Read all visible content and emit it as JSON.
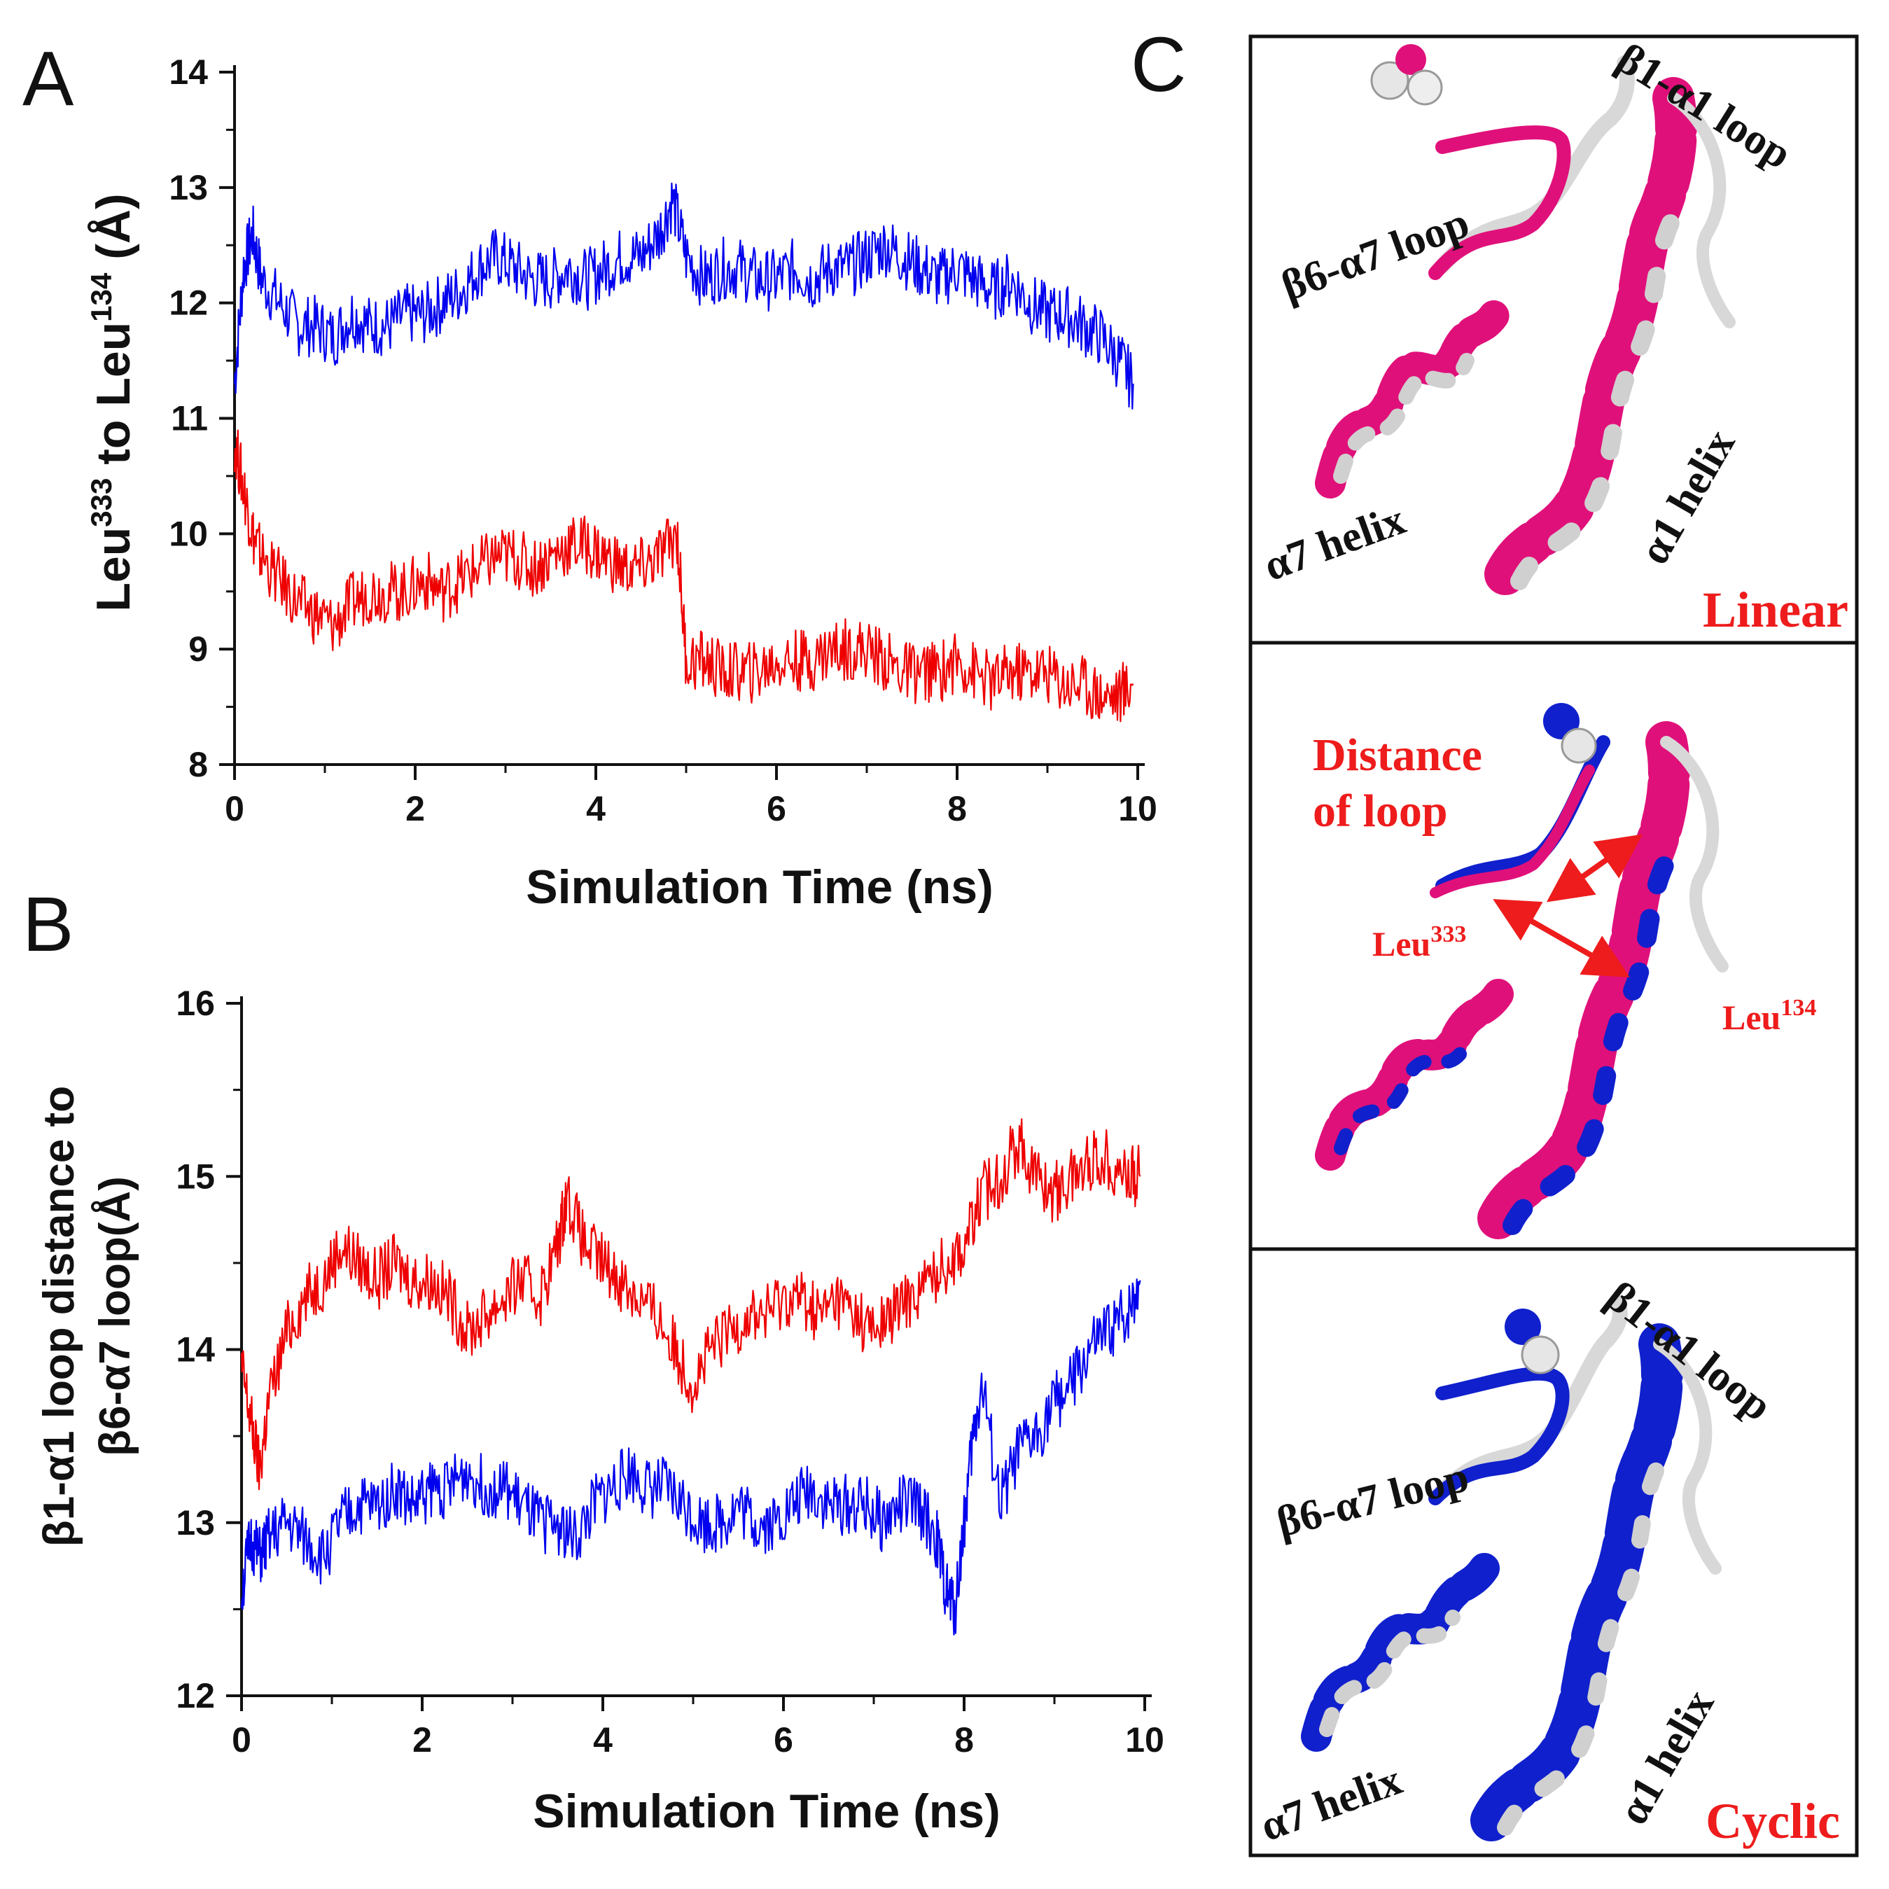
{
  "panel_labels": {
    "a": "A",
    "b": "B",
    "c": "C"
  },
  "colors": {
    "series1": "#0000ee",
    "series2": "#ee0000",
    "magenta": "#e0107a",
    "blue_ribbon": "#1020cc",
    "white_ribbon": "#d8d8d8",
    "label_red": "#ee1c1c",
    "text": "#111111"
  },
  "chart_data": [
    {
      "id": "A",
      "type": "line",
      "title": "",
      "xlabel": "Simulation Time (ns)",
      "ylabel_parts": {
        "p1": "Leu",
        "s1": "333",
        "p2": " to Leu",
        "s2": "134",
        "p3": " (Å)"
      },
      "xlim": [
        0,
        10
      ],
      "ylim": [
        8,
        14
      ],
      "xticks": [
        "0",
        "2",
        "4",
        "6",
        "8",
        "10"
      ],
      "yticks": [
        "8",
        "9",
        "10",
        "11",
        "12",
        "13",
        "14"
      ],
      "series": [
        {
          "name": "blue",
          "color": "#0000ee",
          "x": [
            0,
            0.1,
            0.2,
            0.3,
            0.5,
            0.7,
            0.9,
            1.1,
            1.3,
            1.5,
            1.7,
            1.9,
            2.1,
            2.3,
            2.5,
            2.7,
            2.9,
            3.1,
            3.3,
            3.5,
            3.7,
            3.9,
            4.1,
            4.3,
            4.5,
            4.7,
            4.85,
            5.0,
            5.2,
            5.4,
            5.6,
            5.8,
            6.0,
            6.2,
            6.4,
            6.6,
            6.8,
            7.0,
            7.2,
            7.4,
            7.6,
            7.8,
            8.0,
            8.2,
            8.4,
            8.6,
            8.8,
            9.0,
            9.2,
            9.4,
            9.6,
            9.8,
            9.95
          ],
          "y": [
            11.3,
            12.3,
            12.6,
            12.2,
            12.0,
            11.8,
            11.8,
            11.7,
            11.9,
            11.8,
            11.8,
            11.9,
            11.9,
            12.0,
            12.1,
            12.3,
            12.4,
            12.3,
            12.2,
            12.2,
            12.3,
            12.2,
            12.3,
            12.4,
            12.4,
            12.6,
            12.9,
            12.4,
            12.2,
            12.3,
            12.3,
            12.2,
            12.2,
            12.3,
            12.2,
            12.3,
            12.3,
            12.4,
            12.5,
            12.4,
            12.3,
            12.2,
            12.3,
            12.2,
            12.1,
            12.2,
            12.0,
            11.9,
            11.9,
            11.8,
            11.7,
            11.5,
            11.3
          ]
        },
        {
          "name": "red",
          "color": "#ee0000",
          "x": [
            0,
            0.1,
            0.2,
            0.3,
            0.5,
            0.7,
            0.9,
            1.1,
            1.3,
            1.5,
            1.7,
            1.9,
            2.1,
            2.3,
            2.5,
            2.7,
            2.9,
            3.1,
            3.3,
            3.5,
            3.7,
            3.9,
            4.1,
            4.3,
            4.5,
            4.7,
            4.9,
            5.0,
            5.2,
            5.4,
            5.6,
            5.8,
            6.0,
            6.2,
            6.4,
            6.6,
            6.8,
            7.0,
            7.2,
            7.4,
            7.6,
            7.8,
            8.0,
            8.2,
            8.4,
            8.6,
            8.8,
            9.0,
            9.2,
            9.4,
            9.6,
            9.8,
            9.95
          ],
          "y": [
            10.8,
            10.4,
            10.0,
            9.8,
            9.6,
            9.4,
            9.3,
            9.2,
            9.4,
            9.5,
            9.5,
            9.5,
            9.6,
            9.5,
            9.6,
            9.7,
            9.8,
            9.8,
            9.7,
            9.8,
            9.9,
            9.9,
            9.8,
            9.7,
            9.7,
            9.8,
            10.0,
            8.9,
            8.9,
            8.8,
            8.8,
            8.8,
            8.9,
            8.9,
            8.9,
            9.0,
            9.0,
            9.0,
            8.9,
            8.8,
            8.8,
            8.8,
            8.9,
            8.8,
            8.7,
            8.8,
            8.8,
            8.8,
            8.7,
            8.7,
            8.6,
            8.6,
            8.7
          ]
        }
      ]
    },
    {
      "id": "B",
      "type": "line",
      "title": "",
      "xlabel": "Simulation Time (ns)",
      "ylabel_line1": "β1-α1 loop distance to",
      "ylabel_line2": "β6-α7 loop(Å)",
      "xlim": [
        0,
        10
      ],
      "ylim": [
        12,
        16
      ],
      "xticks": [
        "0",
        "2",
        "4",
        "6",
        "8",
        "10"
      ],
      "yticks": [
        "12",
        "13",
        "14",
        "15",
        "16"
      ],
      "series": [
        {
          "name": "red",
          "color": "#ee0000",
          "x": [
            0,
            0.1,
            0.2,
            0.3,
            0.5,
            0.7,
            0.9,
            1.1,
            1.3,
            1.5,
            1.7,
            1.9,
            2.1,
            2.3,
            2.5,
            2.7,
            2.9,
            3.1,
            3.3,
            3.5,
            3.6,
            3.8,
            4.0,
            4.2,
            4.4,
            4.6,
            4.8,
            5.0,
            5.2,
            5.4,
            5.6,
            5.8,
            6.0,
            6.2,
            6.4,
            6.6,
            6.8,
            7.0,
            7.2,
            7.4,
            7.6,
            7.8,
            8.0,
            8.2,
            8.4,
            8.6,
            8.8,
            9.0,
            9.2,
            9.4,
            9.6,
            9.8,
            9.95
          ],
          "y": [
            13.9,
            13.6,
            13.3,
            13.7,
            14.1,
            14.3,
            14.4,
            14.6,
            14.5,
            14.4,
            14.5,
            14.4,
            14.4,
            14.3,
            14.1,
            14.2,
            14.3,
            14.4,
            14.3,
            14.6,
            14.9,
            14.6,
            14.5,
            14.4,
            14.3,
            14.2,
            14.0,
            13.8,
            14.0,
            14.1,
            14.2,
            14.2,
            14.3,
            14.3,
            14.2,
            14.3,
            14.2,
            14.1,
            14.2,
            14.3,
            14.4,
            14.5,
            14.6,
            14.9,
            15.0,
            15.2,
            15.0,
            14.9,
            15.0,
            15.1,
            15.1,
            15.0,
            15.0
          ]
        },
        {
          "name": "blue",
          "color": "#0000ee",
          "x": [
            0,
            0.1,
            0.2,
            0.3,
            0.5,
            0.7,
            0.9,
            1.1,
            1.3,
            1.5,
            1.7,
            1.9,
            2.1,
            2.3,
            2.5,
            2.7,
            2.9,
            3.1,
            3.3,
            3.5,
            3.7,
            3.9,
            4.1,
            4.3,
            4.5,
            4.7,
            4.9,
            5.1,
            5.3,
            5.5,
            5.7,
            5.9,
            6.1,
            6.3,
            6.5,
            6.7,
            6.9,
            7.1,
            7.3,
            7.5,
            7.7,
            7.8,
            7.9,
            8.0,
            8.1,
            8.2,
            8.4,
            8.6,
            8.8,
            9.0,
            9.2,
            9.4,
            9.6,
            9.8,
            9.95
          ],
          "y": [
            12.6,
            12.9,
            12.8,
            12.9,
            13.0,
            12.9,
            12.8,
            13.0,
            13.1,
            13.1,
            13.2,
            13.1,
            13.2,
            13.2,
            13.3,
            13.2,
            13.2,
            13.1,
            13.0,
            13.0,
            12.9,
            13.1,
            13.2,
            13.3,
            13.2,
            13.2,
            13.1,
            13.0,
            13.0,
            13.1,
            13.0,
            13.0,
            13.1,
            13.2,
            13.1,
            13.1,
            13.1,
            13.0,
            13.1,
            13.1,
            12.9,
            12.6,
            12.5,
            13.0,
            13.5,
            13.8,
            13.1,
            13.4,
            13.5,
            13.7,
            13.8,
            14.0,
            14.1,
            14.2,
            14.4
          ]
        }
      ]
    }
  ],
  "panel_c": {
    "top": {
      "loop1": "β1-α1 loop",
      "loop2": "β6-α7 loop",
      "helix1": "α7 helix",
      "helix2": "α1 helix",
      "tag": "Linear"
    },
    "middle": {
      "dist1": "Distance",
      "dist2": "of loop",
      "res1_base": "Leu",
      "res1_sup": "333",
      "res2_base": "Leu",
      "res2_sup": "134"
    },
    "bottom": {
      "loop1": "β1-α1 loop",
      "loop2": "β6-α7 loop",
      "helix1": "α7 helix",
      "helix2": "α1 helix",
      "tag": "Cyclic"
    }
  }
}
